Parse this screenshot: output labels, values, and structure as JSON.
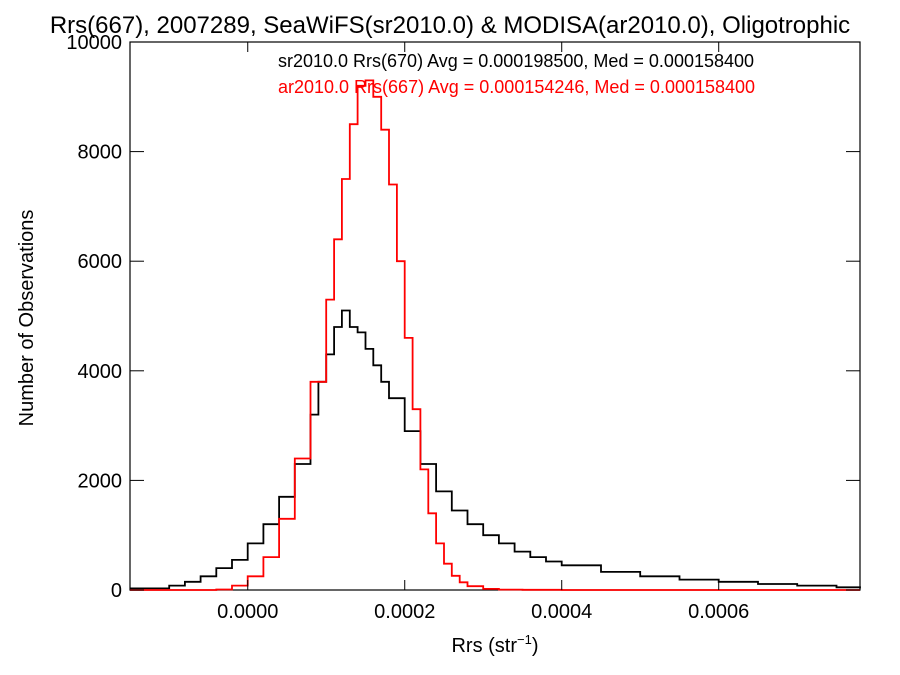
{
  "chart_data": {
    "type": "line",
    "title": "Rrs(667), 2007289, SeaWiFS(sr2010.0) & MODISA(ar2010.0), Oligotrophic",
    "xlabel": "Rrs (str",
    "xlabel_superscript": "−1",
    "xlabel_suffix": ")",
    "ylabel": "Number of Observations",
    "xlim": [
      -0.00015,
      0.00078
    ],
    "ylim": [
      0,
      10000
    ],
    "x_ticks": [
      {
        "value": 0.0,
        "label": "0.0000"
      },
      {
        "value": 0.0002,
        "label": "0.0002"
      },
      {
        "value": 0.0004,
        "label": "0.0004"
      },
      {
        "value": 0.0006,
        "label": "0.0006"
      }
    ],
    "y_ticks": [
      {
        "value": 0,
        "label": "0"
      },
      {
        "value": 2000,
        "label": "2000"
      },
      {
        "value": 4000,
        "label": "4000"
      },
      {
        "value": 6000,
        "label": "6000"
      },
      {
        "value": 8000,
        "label": "8000"
      },
      {
        "value": 10000,
        "label": "10000"
      }
    ],
    "grid": false,
    "legend_position": "top-right",
    "step": true,
    "series": [
      {
        "name": "sr2010.0 Rrs(670) Avg = 0.000198500, Med = 0.000158400",
        "color": "#000000",
        "x": [
          -0.00015,
          -0.0001,
          -8e-05,
          -6e-05,
          -4e-05,
          -2e-05,
          0.0,
          2e-05,
          4e-05,
          6e-05,
          8e-05,
          9e-05,
          0.0001,
          0.00011,
          0.00012,
          0.00013,
          0.00014,
          0.00015,
          0.00016,
          0.00017,
          0.00018,
          0.0002,
          0.00022,
          0.00024,
          0.00026,
          0.00028,
          0.0003,
          0.00032,
          0.00034,
          0.00036,
          0.00038,
          0.0004,
          0.00045,
          0.0005,
          0.00055,
          0.0006,
          0.00065,
          0.0007,
          0.00075,
          0.00078
        ],
        "y": [
          30,
          80,
          150,
          250,
          400,
          550,
          850,
          1200,
          1700,
          2300,
          3200,
          3800,
          4300,
          4800,
          5100,
          4800,
          4700,
          4400,
          4100,
          3800,
          3500,
          2900,
          2300,
          1800,
          1450,
          1200,
          1000,
          850,
          700,
          600,
          520,
          450,
          330,
          250,
          190,
          150,
          110,
          80,
          50,
          30
        ]
      },
      {
        "name": "ar2010.0 Rrs(667) Avg = 0.000154246, Med = 0.000158400",
        "color": "#ff0000",
        "x": [
          -0.00015,
          -4e-05,
          -2e-05,
          0.0,
          2e-05,
          4e-05,
          6e-05,
          8e-05,
          0.0001,
          0.00011,
          0.00012,
          0.00013,
          0.00014,
          0.00015,
          0.00016,
          0.00017,
          0.00018,
          0.00019,
          0.0002,
          0.00021,
          0.00022,
          0.00023,
          0.00024,
          0.00025,
          0.00026,
          0.00027,
          0.00028,
          0.0003,
          0.00032,
          0.00035,
          0.0004,
          0.00078
        ],
        "y": [
          0,
          10,
          80,
          250,
          600,
          1300,
          2400,
          3800,
          5300,
          6400,
          7500,
          8500,
          9200,
          9300,
          9000,
          8400,
          7400,
          6000,
          4600,
          3300,
          2200,
          1400,
          850,
          480,
          260,
          140,
          70,
          20,
          8,
          3,
          0,
          0
        ]
      }
    ]
  }
}
